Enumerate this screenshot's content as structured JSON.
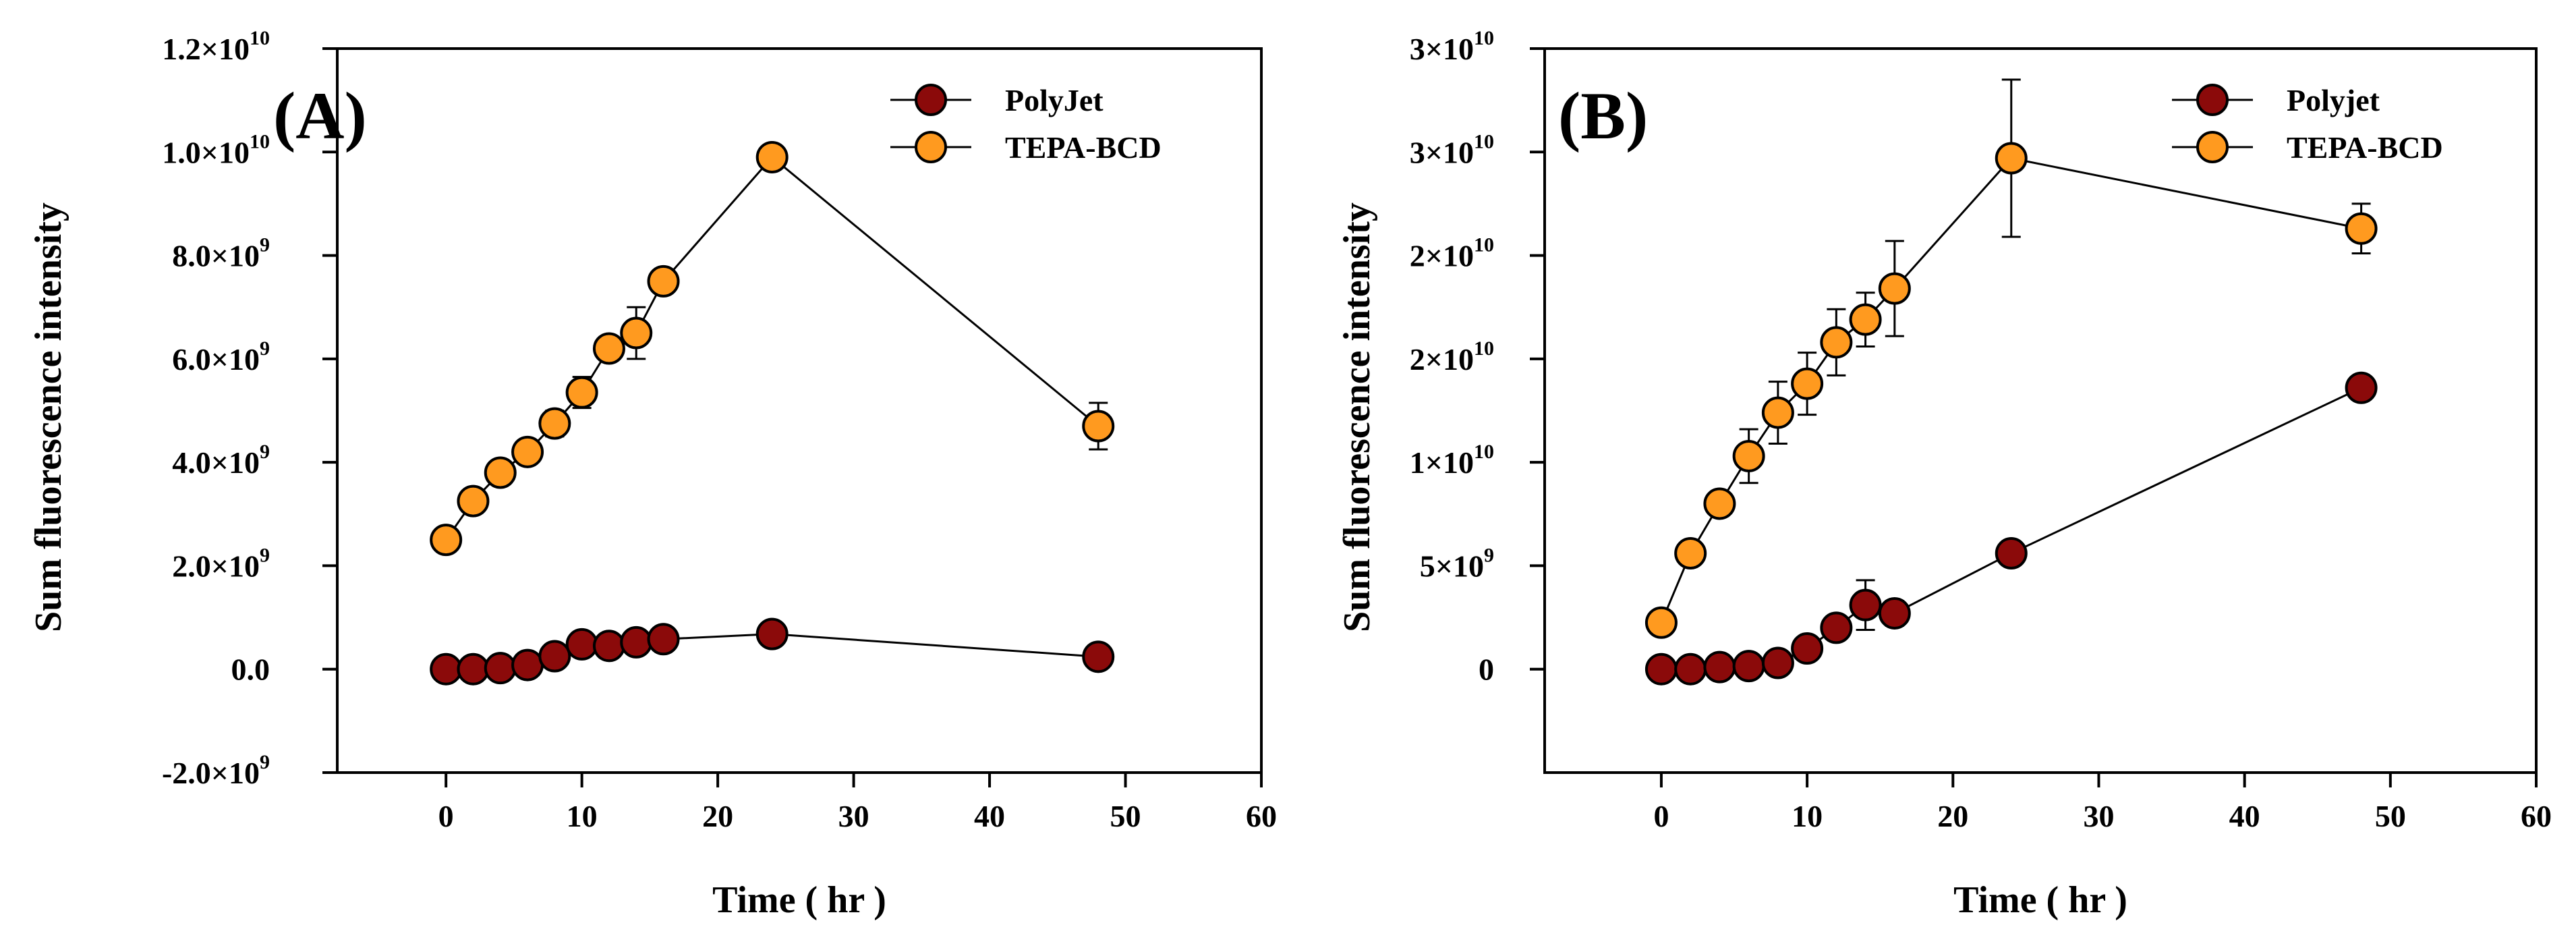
{
  "chart_data": [
    {
      "type": "line",
      "panel_label": "(A)",
      "xlabel": "Time ( hr )",
      "ylabel": "Sum fluorescence intensity",
      "xlim": [
        -8,
        60
      ],
      "ylim": [
        -2000000000.0,
        12000000000.0
      ],
      "x_ticks": [
        0,
        10,
        20,
        30,
        40,
        50,
        60
      ],
      "x_tick_labels": [
        "0",
        "10",
        "20",
        "30",
        "40",
        "50",
        "60"
      ],
      "y_ticks": [
        -2000000000.0,
        0,
        2000000000.0,
        4000000000.0,
        6000000000.0,
        8000000000.0,
        10000000000.0,
        12000000000.0
      ],
      "y_tick_labels": [
        {
          "mant": "-2.0×10",
          "exp": "9"
        },
        {
          "mant": "0.0",
          "exp": ""
        },
        {
          "mant": "2.0×10",
          "exp": "9"
        },
        {
          "mant": "4.0×10",
          "exp": "9"
        },
        {
          "mant": "6.0×10",
          "exp": "9"
        },
        {
          "mant": "8.0×10",
          "exp": "9"
        },
        {
          "mant": "1.0×10",
          "exp": "10"
        },
        {
          "mant": "1.2×10",
          "exp": "10"
        }
      ],
      "legend_position": "top-right",
      "series": [
        {
          "name": "PolyJet",
          "color": "#8B0A0A",
          "x": [
            0,
            2,
            4,
            6,
            8,
            10,
            12,
            14,
            16,
            24,
            48
          ],
          "y": [
            0.0,
            0.0,
            20000000.0,
            80000000.0,
            250000000.0,
            480000000.0,
            450000000.0,
            520000000.0,
            580000000.0,
            680000000.0,
            240000000.0
          ],
          "err": [
            30000000.0,
            30000000.0,
            30000000.0,
            30000000.0,
            50000000.0,
            60000000.0,
            50000000.0,
            50000000.0,
            50000000.0,
            50000000.0,
            50000000.0
          ]
        },
        {
          "name": "TEPA-BCD",
          "color": "#FF9A1F",
          "x": [
            0,
            2,
            4,
            6,
            8,
            10,
            12,
            14,
            16,
            24,
            48
          ],
          "y": [
            2500000000.0,
            3250000000.0,
            3800000000.0,
            4200000000.0,
            4750000000.0,
            5350000000.0,
            6200000000.0,
            6500000000.0,
            7500000000.0,
            9900000000.0,
            4700000000.0
          ],
          "err": [
            50000000.0,
            80000000.0,
            100000000.0,
            120000000.0,
            250000000.0,
            300000000.0,
            150000000.0,
            500000000.0,
            150000000.0,
            150000000.0,
            450000000.0
          ]
        }
      ]
    },
    {
      "type": "line",
      "panel_label": "(B)",
      "xlabel": "Time ( hr )",
      "ylabel": "Sum fluorescence intensity",
      "xlim": [
        -8,
        60
      ],
      "ylim": [
        -5000000000.0,
        30000000000.0
      ],
      "x_ticks": [
        0,
        10,
        20,
        30,
        40,
        50,
        60
      ],
      "x_tick_labels": [
        "0",
        "10",
        "20",
        "30",
        "40",
        "50",
        "60"
      ],
      "y_ticks": [
        0,
        5000000000.0,
        10000000000.0,
        15000000000.0,
        20000000000.0,
        25000000000.0,
        30000000000.0
      ],
      "y_tick_labels": [
        {
          "mant": "0",
          "exp": ""
        },
        {
          "mant": "5×10",
          "exp": "9"
        },
        {
          "mant": "1×10",
          "exp": "10"
        },
        {
          "mant": "2×10",
          "exp": "10"
        },
        {
          "mant": "2×10",
          "exp": "10"
        },
        {
          "mant": "3×10",
          "exp": "10"
        },
        {
          "mant": "3×10",
          "exp": "10"
        }
      ],
      "legend_position": "top-right",
      "series": [
        {
          "name": "Polyjet",
          "color": "#8B0A0A",
          "x": [
            0,
            2,
            4,
            6,
            8,
            10,
            12,
            14,
            16,
            24,
            48
          ],
          "y": [
            0.0,
            0.0,
            100000000.0,
            150000000.0,
            300000000.0,
            1000000000.0,
            2000000000.0,
            3100000000.0,
            2700000000.0,
            5600000000.0,
            13600000000.0
          ],
          "err": [
            50000000.0,
            50000000.0,
            50000000.0,
            80000000.0,
            100000000.0,
            200000000.0,
            350000000.0,
            1200000000.0,
            600000000.0,
            400000000.0,
            450000000.0
          ]
        },
        {
          "name": "TEPA-BCD",
          "color": "#FF9A1F",
          "x": [
            0,
            2,
            4,
            6,
            8,
            10,
            12,
            14,
            16,
            24,
            48
          ],
          "y": [
            2250000000.0,
            5600000000.0,
            8000000000.0,
            10300000000.0,
            12400000000.0,
            13800000000.0,
            15800000000.0,
            16900000000.0,
            18400000000.0,
            24700000000.0,
            21300000000.0
          ],
          "err": [
            500000000.0,
            500000000.0,
            600000000.0,
            1300000000.0,
            1500000000.0,
            1500000000.0,
            1600000000.0,
            1300000000.0,
            2300000000.0,
            3800000000.0,
            1200000000.0
          ]
        }
      ]
    }
  ]
}
